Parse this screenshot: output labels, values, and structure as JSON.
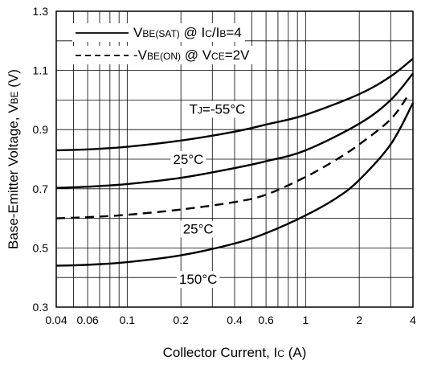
{
  "chart_data": {
    "type": "line",
    "xscale": "log",
    "xlim": [
      0.04,
      4
    ],
    "ylim": [
      0.3,
      1.3
    ],
    "xlabel": "Collector Current, IC (A)",
    "xlabel_parts": {
      "main": "Collector Current, I",
      "sub": "C",
      "tail": " (A)"
    },
    "ylabel": "Base-Emitter Voltage, VBE (V)",
    "ylabel_parts": {
      "main": "Base-Emitter Voltage, V",
      "sub": "BE",
      "tail": " (V)"
    },
    "x_tick_labels": [
      {
        "x": 0.04,
        "label": "0.04"
      },
      {
        "x": 0.06,
        "label": "0.06"
      },
      {
        "x": 0.1,
        "label": "0.1"
      },
      {
        "x": 0.2,
        "label": "0.2"
      },
      {
        "x": 0.4,
        "label": "0.4"
      },
      {
        "x": 0.6,
        "label": "0.6"
      },
      {
        "x": 1,
        "label": "1"
      },
      {
        "x": 2,
        "label": "2"
      },
      {
        "x": 4,
        "label": "4"
      }
    ],
    "y_tick_labels": [
      {
        "y": 0.3,
        "label": "0.3"
      },
      {
        "y": 0.5,
        "label": "0.5"
      },
      {
        "y": 0.7,
        "label": "0.7"
      },
      {
        "y": 0.9,
        "label": "0.9"
      },
      {
        "y": 1.1,
        "label": "1.1"
      },
      {
        "y": 1.3,
        "label": "1.3"
      }
    ],
    "grid_x": [
      0.04,
      0.05,
      0.06,
      0.07,
      0.08,
      0.09,
      0.1,
      0.2,
      0.3,
      0.4,
      0.5,
      0.6,
      0.7,
      0.8,
      0.9,
      1,
      2,
      3,
      4
    ],
    "grid_y": [
      0.3,
      0.4,
      0.5,
      0.6,
      0.7,
      0.8,
      0.9,
      1.0,
      1.1,
      1.2,
      1.3
    ],
    "grid": true,
    "legend_position": "top-left",
    "legend": [
      {
        "style": "solid",
        "parts": [
          {
            "t": "V",
            "sub": false
          },
          {
            "t": "BE(SAT)",
            "sub": true
          },
          {
            "t": " @ I",
            "sub": false
          },
          {
            "t": "C",
            "sub": true
          },
          {
            "t": "/I",
            "sub": false
          },
          {
            "t": "B",
            "sub": true
          },
          {
            "t": "=4",
            "sub": false
          }
        ]
      },
      {
        "style": "dashed",
        "parts": [
          {
            "t": "-V",
            "sub": false
          },
          {
            "t": "BE(ON)",
            "sub": true
          },
          {
            "t": " @ V",
            "sub": false
          },
          {
            "t": "CE",
            "sub": true
          },
          {
            "t": "=2V",
            "sub": false
          }
        ]
      }
    ],
    "series": [
      {
        "style": "solid",
        "label": "TJ=-55°C",
        "label_parts": [
          {
            "t": "T",
            "sub": false
          },
          {
            "t": "J",
            "sub": true
          },
          {
            "t": "=-55°C",
            "sub": false
          }
        ],
        "label_at": {
          "x": 0.32,
          "y": 0.97
        },
        "points": [
          [
            0.04,
            0.83
          ],
          [
            0.06,
            0.833
          ],
          [
            0.1,
            0.842
          ],
          [
            0.2,
            0.863
          ],
          [
            0.4,
            0.893
          ],
          [
            0.6,
            0.917
          ],
          [
            1,
            0.95
          ],
          [
            2,
            1.02
          ],
          [
            3,
            1.08
          ],
          [
            4,
            1.14
          ]
        ]
      },
      {
        "style": "solid",
        "label": "25°C",
        "label_parts": [
          {
            "t": "25°C",
            "sub": false
          }
        ],
        "label_at": {
          "x": 0.22,
          "y": 0.8
        },
        "points": [
          [
            0.04,
            0.703
          ],
          [
            0.06,
            0.707
          ],
          [
            0.1,
            0.716
          ],
          [
            0.2,
            0.737
          ],
          [
            0.4,
            0.77
          ],
          [
            0.6,
            0.793
          ],
          [
            1,
            0.83
          ],
          [
            2,
            0.92
          ],
          [
            3,
            1.0
          ],
          [
            4,
            1.09
          ]
        ]
      },
      {
        "style": "dashed",
        "label": "25°C",
        "label_parts": [
          {
            "t": "25°C",
            "sub": false
          }
        ],
        "label_at": {
          "x": 0.25,
          "y": 0.565
        },
        "points": [
          [
            0.04,
            0.6
          ],
          [
            0.06,
            0.604
          ],
          [
            0.1,
            0.612
          ],
          [
            0.2,
            0.63
          ],
          [
            0.4,
            0.655
          ],
          [
            0.6,
            0.68
          ],
          [
            1,
            0.74
          ],
          [
            1.5,
            0.8
          ],
          [
            2,
            0.85
          ],
          [
            3,
            0.935
          ],
          [
            3.8,
            1.02
          ]
        ]
      },
      {
        "style": "solid",
        "label": "150°C",
        "label_parts": [
          {
            "t": "150°C",
            "sub": false
          }
        ],
        "label_at": {
          "x": 0.25,
          "y": 0.395
        },
        "points": [
          [
            0.04,
            0.44
          ],
          [
            0.06,
            0.443
          ],
          [
            0.1,
            0.452
          ],
          [
            0.2,
            0.475
          ],
          [
            0.4,
            0.515
          ],
          [
            0.6,
            0.55
          ],
          [
            1,
            0.61
          ],
          [
            1.5,
            0.67
          ],
          [
            2,
            0.73
          ],
          [
            3,
            0.85
          ],
          [
            4,
            0.99
          ]
        ]
      }
    ]
  }
}
